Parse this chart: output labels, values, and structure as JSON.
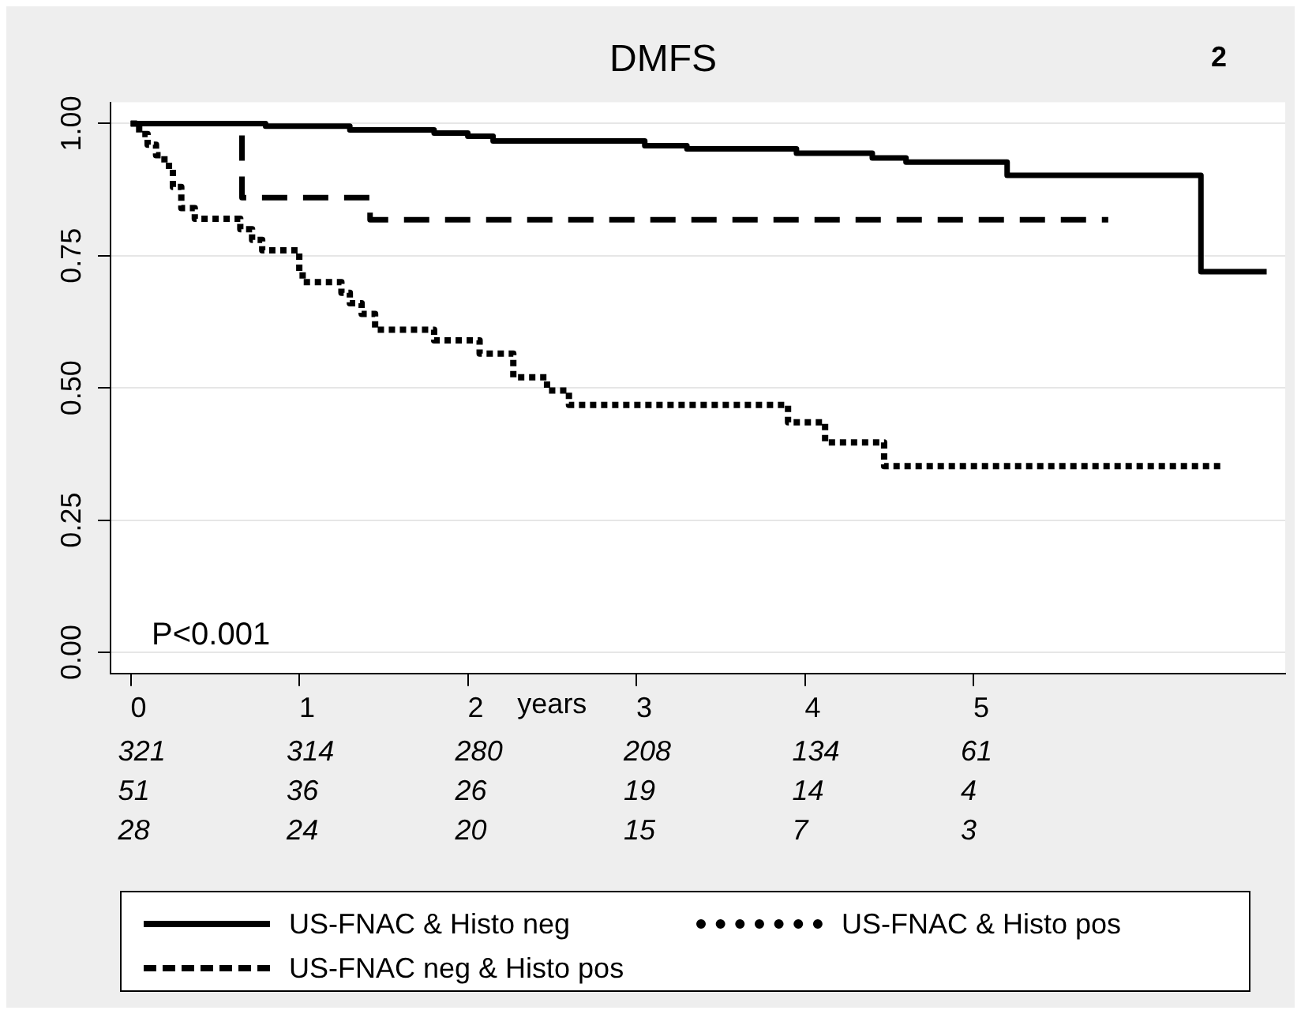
{
  "chart_data": {
    "type": "step",
    "title": "DMFS",
    "xlabel": "years",
    "xlim": [
      -0.12,
      6.85
    ],
    "xticks": [
      0,
      1,
      2,
      3,
      4,
      5
    ],
    "ylim": [
      -0.04,
      1.04
    ],
    "yticks": [
      {
        "value": 0,
        "label": "0.00"
      },
      {
        "value": 0.25,
        "label": "0.25"
      },
      {
        "value": 0.5,
        "label": "0.50"
      },
      {
        "value": 0.75,
        "label": "0.75"
      },
      {
        "value": 1,
        "label": "1.00"
      }
    ],
    "grid": "y",
    "legend": "bottom",
    "marker": "none",
    "series": [
      {
        "name": "US-FNAC & Histo neg",
        "color": "#000000",
        "line_style": "solid",
        "x": [
          0,
          0.8,
          1.3,
          1.8,
          2.0,
          2.15,
          3.05,
          3.3,
          3.95,
          4.4,
          4.6,
          5.2,
          6.35,
          6.74
        ],
        "values": [
          1.0,
          0.995,
          0.988,
          0.982,
          0.976,
          0.967,
          0.958,
          0.952,
          0.944,
          0.935,
          0.927,
          0.902,
          0.72,
          0.72
        ]
      },
      {
        "name": "US-FNAC neg & Histo pos",
        "color": "#000000",
        "line_style": "dashed",
        "x": [
          0,
          0.66,
          1.42,
          5.8
        ],
        "values": [
          1.0,
          0.86,
          0.818,
          0.818
        ]
      },
      {
        "name": "US-FNAC & Histo pos",
        "color": "#000000",
        "line_style": "dotted",
        "x": [
          0,
          0.05,
          0.1,
          0.15,
          0.2,
          0.25,
          0.3,
          0.38,
          0.65,
          0.72,
          0.78,
          1.0,
          1.02,
          1.25,
          1.3,
          1.37,
          1.45,
          1.8,
          2.07,
          2.27,
          2.47,
          2.6,
          3.9,
          4.12,
          4.47,
          6.49
        ],
        "values": [
          1.0,
          0.98,
          0.96,
          0.94,
          0.92,
          0.88,
          0.84,
          0.82,
          0.8,
          0.78,
          0.76,
          0.72,
          0.7,
          0.68,
          0.66,
          0.64,
          0.61,
          0.59,
          0.565,
          0.52,
          0.495,
          0.468,
          0.435,
          0.397,
          0.352,
          0.352
        ]
      }
    ],
    "annotations": [
      "2",
      "P<0.001",
      "321",
      "314",
      "280",
      "208",
      "134",
      "61",
      "51",
      "36",
      "26",
      "19",
      "14",
      "4",
      "28",
      "24",
      "20",
      "15",
      "7",
      "3"
    ]
  }
}
